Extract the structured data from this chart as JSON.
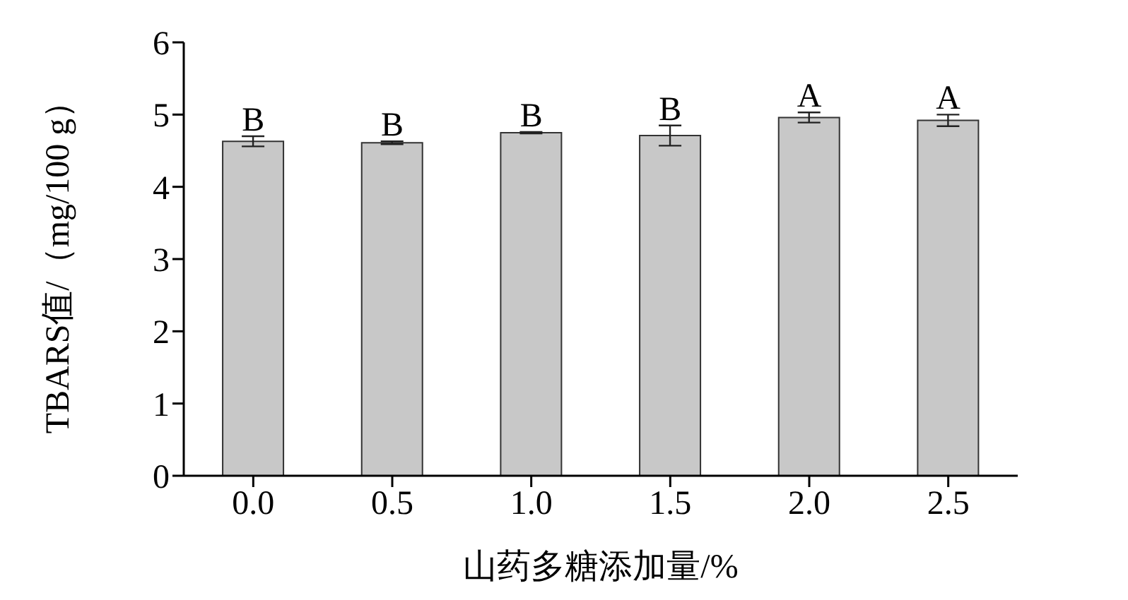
{
  "chart_data": {
    "type": "bar",
    "xlabel": "山药多糖添加量/%",
    "ylabel": "TBARS值/（mg/100 g）",
    "categories": [
      "0.0",
      "0.5",
      "1.0",
      "1.5",
      "2.0",
      "2.5"
    ],
    "values": [
      4.63,
      4.61,
      4.75,
      4.71,
      4.96,
      4.92
    ],
    "errors": [
      0.07,
      0.02,
      0.01,
      0.14,
      0.07,
      0.08
    ],
    "color": "#c8c8c8",
    "ylim": [
      0,
      6
    ],
    "yticks": [
      0,
      1,
      2,
      3,
      4,
      5,
      6
    ],
    "grid": false,
    "legend": false,
    "annotations": [
      {
        "text": "B",
        "x": "0.0",
        "y": 4.7
      },
      {
        "text": "B",
        "x": "0.5",
        "y": 4.63
      },
      {
        "text": "B",
        "x": "1.0",
        "y": 4.76
      },
      {
        "text": "B",
        "x": "1.5",
        "y": 4.85
      },
      {
        "text": "A",
        "x": "2.0",
        "y": 5.03
      },
      {
        "text": "A",
        "x": "2.5",
        "y": 5.0
      }
    ]
  }
}
